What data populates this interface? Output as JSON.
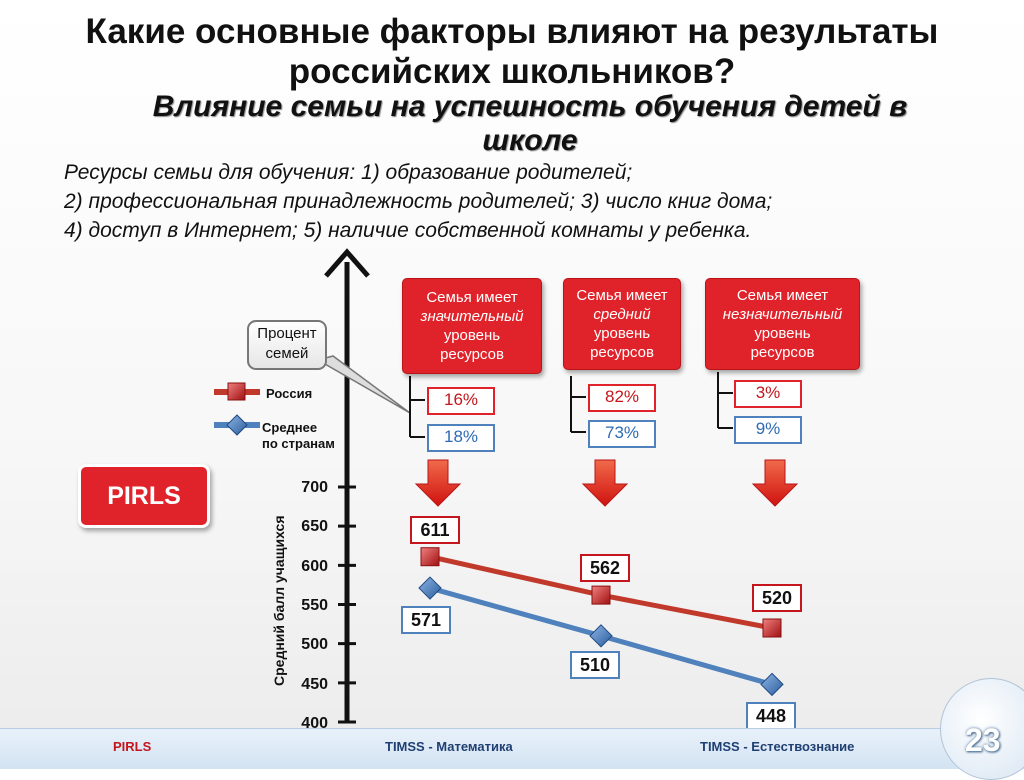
{
  "title_line1": "Какие основные факторы влияют на результаты",
  "title_line2": "российских школьников?",
  "subtitle_line1": "Влияние семьи на успешность обучения детей в",
  "subtitle_line2": "школе",
  "resources": {
    "line1": "Ресурсы семьи для обучения: 1) образование родителей;",
    "line2": "2) профессиональная принадлежность родителей; 3) число книг дома;",
    "line3": "4) доступ в Интернет; 5) наличие собственной комнаты у ребенка."
  },
  "badge": "PIRLS",
  "callout": {
    "line1": "Процент",
    "line2": "семей"
  },
  "legend": {
    "russia": "Россия",
    "average_line1": "Среднее",
    "average_line2": "по странам"
  },
  "groups": [
    {
      "line1": "Семья имеет",
      "line2": "значительный",
      "line3": "уровень",
      "line4": "ресурсов",
      "pct_russia": "16%",
      "pct_average": "18%"
    },
    {
      "line1": "Семья имеет",
      "line2": "средний",
      "line3": "уровень",
      "line4": "ресурсов",
      "pct_russia": "82%",
      "pct_average": "73%"
    },
    {
      "line1": "Семья имеет",
      "line2": "незначительный",
      "line3": "уровень",
      "line4": "ресурсов",
      "pct_russia": "3%",
      "pct_average": "9%"
    }
  ],
  "colors": {
    "russia": "#c0392b",
    "average": "#4f81bd",
    "accent": "#e0232a"
  },
  "chart_data": {
    "type": "line",
    "categories": [
      "значительный",
      "средний",
      "незначительный"
    ],
    "series": [
      {
        "name": "Россия",
        "values": [
          611,
          562,
          520
        ],
        "labels": [
          "611",
          "562",
          "520"
        ]
      },
      {
        "name": "Среднее по странам",
        "values": [
          571,
          510,
          448
        ],
        "labels": [
          "571",
          "510",
          "448"
        ]
      }
    ],
    "ylabel": "Средний балл учащихся",
    "ylim": [
      400,
      700
    ],
    "yticks": [
      "400",
      "450",
      "500",
      "550",
      "600",
      "650",
      "700"
    ]
  },
  "footer": {
    "left": "PIRLS",
    "center": "TIMSS - Математика",
    "right": "TIMSS - Естествознание",
    "page": "23"
  }
}
